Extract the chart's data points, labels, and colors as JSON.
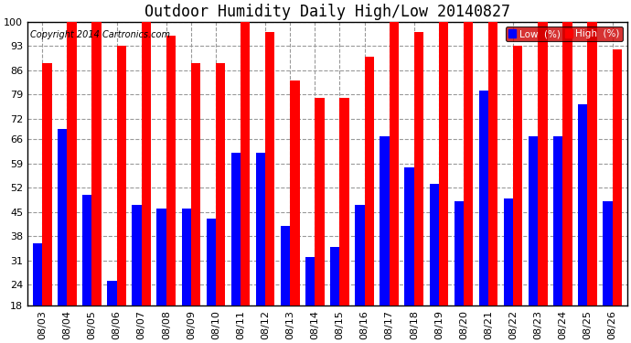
{
  "title": "Outdoor Humidity Daily High/Low 20140827",
  "copyright": "Copyright 2014 Cartronics.com",
  "dates": [
    "08/03",
    "08/04",
    "08/05",
    "08/06",
    "08/07",
    "08/08",
    "08/09",
    "08/10",
    "08/11",
    "08/12",
    "08/13",
    "08/14",
    "08/15",
    "08/16",
    "08/17",
    "08/18",
    "08/19",
    "08/20",
    "08/21",
    "08/22",
    "08/23",
    "08/24",
    "08/25",
    "08/26"
  ],
  "high": [
    88,
    100,
    100,
    93,
    100,
    96,
    88,
    88,
    100,
    97,
    83,
    78,
    78,
    90,
    100,
    97,
    100,
    100,
    100,
    93,
    100,
    100,
    100,
    92
  ],
  "low": [
    36,
    69,
    50,
    25,
    47,
    46,
    46,
    43,
    62,
    62,
    41,
    32,
    35,
    47,
    67,
    58,
    53,
    48,
    80,
    49,
    67,
    67,
    76,
    48
  ],
  "high_color": "#ff0000",
  "low_color": "#0000ff",
  "bg_color": "#ffffff",
  "plot_bg_color": "#ffffff",
  "grid_color": "#999999",
  "ylim_min": 18,
  "ylim_max": 100,
  "yticks": [
    18,
    24,
    31,
    38,
    45,
    52,
    59,
    66,
    72,
    79,
    86,
    93,
    100
  ],
  "bar_width": 0.38,
  "title_fontsize": 12,
  "tick_fontsize": 8,
  "legend_low_label": "Low  (%)",
  "legend_high_label": "High  (%)"
}
